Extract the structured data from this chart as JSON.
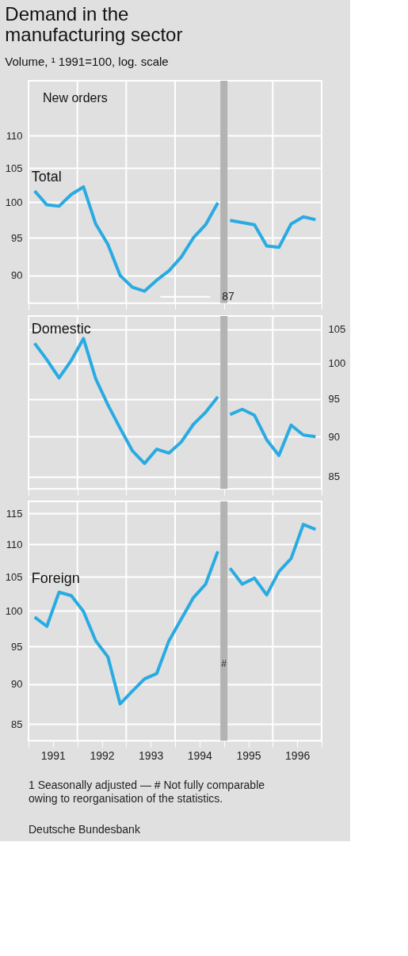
{
  "chart_data": [
    {
      "type": "line",
      "title": "Demand in the manufacturing sector",
      "subtitle": "Volume, ¹ 1991=100, log. scale",
      "annotations": [
        "New orders",
        "87"
      ],
      "x": [
        1991.125,
        1991.375,
        1991.625,
        1991.875,
        1992.125,
        1992.375,
        1992.625,
        1992.875,
        1993.125,
        1993.375,
        1993.625,
        1993.875,
        1994.125,
        1994.375,
        1994.625,
        1994.875,
        1995,
        1995.125,
        1995.375,
        1995.625,
        1995.875,
        1996.125,
        1996.375,
        1996.625,
        1996.875
      ],
      "series": [
        {
          "name": "Total",
          "color": "#29abe2",
          "values": [
            101.6,
            99.6,
            99.4,
            101.1,
            102.2,
            96.9,
            94.1,
            90.0,
            88.5,
            88.0,
            89.4,
            90.6,
            92.4,
            95.0,
            96.8,
            99.9,
            null,
            97.4,
            97.1,
            96.8,
            93.9,
            93.7,
            96.9,
            97.9,
            97.5
          ]
        }
      ],
      "xlim": [
        1991,
        1997
      ],
      "xticks": [
        {
          "value": 1991,
          "label": null
        },
        {
          "value": 1992,
          "label": null
        },
        {
          "value": 1993,
          "label": null
        },
        {
          "value": 1994,
          "label": null
        },
        {
          "value": 1995,
          "label": null
        },
        {
          "value": 1996,
          "label": null
        },
        {
          "value": 1997,
          "label": null
        }
      ],
      "ylim": [
        86.5,
        119
      ],
      "yticks": [
        90,
        95,
        100,
        105,
        110
      ],
      "log": true,
      "grid": true,
      "tick_labels": "y",
      "ref_lines": [
        {
          "axis": "x",
          "value": 1995,
          "color": "#b3b3b3"
        }
      ]
    },
    {
      "type": "line",
      "x": [
        1991.125,
        1991.375,
        1991.625,
        1991.875,
        1992.125,
        1992.375,
        1992.625,
        1992.875,
        1993.125,
        1993.375,
        1993.625,
        1993.875,
        1994.125,
        1994.375,
        1994.625,
        1994.875,
        1995,
        1995.125,
        1995.375,
        1995.625,
        1995.875,
        1996.125,
        1996.375,
        1996.625,
        1996.875
      ],
      "series": [
        {
          "name": "Domestic",
          "color": "#29abe2",
          "axis": "y2",
          "values": [
            102.9,
            100.5,
            97.9,
            100.4,
            103.6,
            97.8,
            94.2,
            91.1,
            88.2,
            86.6,
            88.4,
            87.9,
            89.3,
            91.6,
            93.2,
            95.3,
            null,
            92.9,
            93.6,
            92.8,
            89.6,
            87.6,
            91.5,
            90.2,
            90.0
          ]
        }
      ],
      "xlim": [
        1991,
        1997
      ],
      "xticks": [
        {
          "value": 1991,
          "label": null
        },
        {
          "value": 1992,
          "label": null
        },
        {
          "value": 1993,
          "label": null
        },
        {
          "value": 1994,
          "label": null
        },
        {
          "value": 1995,
          "label": null
        },
        {
          "value": 1996,
          "label": null
        },
        {
          "value": 1997,
          "label": null
        }
      ],
      "y2lim": [
        83.5,
        107
      ],
      "y2ticks": [
        85,
        90,
        95,
        100,
        105
      ],
      "log": "y2",
      "grid": true,
      "tick_labels": "y",
      "ref_lines": [
        {
          "axis": "x",
          "value": 1995,
          "color": "#b3b3b3"
        }
      ]
    },
    {
      "type": "line",
      "annotations": [
        "1 Seasonally adjusted — # Not fully comparable owing to reorganisation of the statistics.",
        "Deutsche Bundesbank"
      ],
      "x": [
        1991.125,
        1991.375,
        1991.625,
        1991.875,
        1992.125,
        1992.375,
        1992.625,
        1992.875,
        1993.125,
        1993.375,
        1993.625,
        1993.875,
        1994.125,
        1994.375,
        1994.625,
        1994.875,
        1995,
        1995.125,
        1995.375,
        1995.625,
        1995.875,
        1996.125,
        1996.375,
        1996.625,
        1996.875
      ],
      "series": [
        {
          "name": "Foreign",
          "color": "#29abe2",
          "values": [
            99.1,
            97.8,
            102.7,
            102.2,
            99.9,
            95.8,
            93.6,
            87.5,
            89.1,
            90.7,
            91.4,
            95.8,
            98.8,
            101.9,
            103.9,
            108.9,
            null,
            106.3,
            103.9,
            104.8,
            102.3,
            105.8,
            107.8,
            113.2,
            112.4
          ]
        }
      ],
      "xlim": [
        1991,
        1997
      ],
      "xticks": [
        {
          "value": 1991,
          "label": null
        },
        {
          "value": 1991.5,
          "label": "1991"
        },
        {
          "value": 1992,
          "label": null
        },
        {
          "value": 1992.5,
          "label": "1992"
        },
        {
          "value": 1993,
          "label": null
        },
        {
          "value": 1993.5,
          "label": "1993"
        },
        {
          "value": 1994,
          "label": null
        },
        {
          "value": 1994.5,
          "label": "1994"
        },
        {
          "value": 1995,
          "label": null
        },
        {
          "value": 1995.5,
          "label": "1995"
        },
        {
          "value": 1996,
          "label": null
        },
        {
          "value": 1996.5,
          "label": "1996"
        },
        {
          "value": 1997,
          "label": null
        }
      ],
      "ylim": [
        83,
        117
      ],
      "yticks": [
        85,
        90,
        95,
        100,
        105,
        110,
        115
      ],
      "log": true,
      "grid": true,
      "ref_lines": [
        {
          "axis": "x",
          "value": 1995,
          "label": "#",
          "color": "#b3b3b3"
        }
      ]
    }
  ]
}
